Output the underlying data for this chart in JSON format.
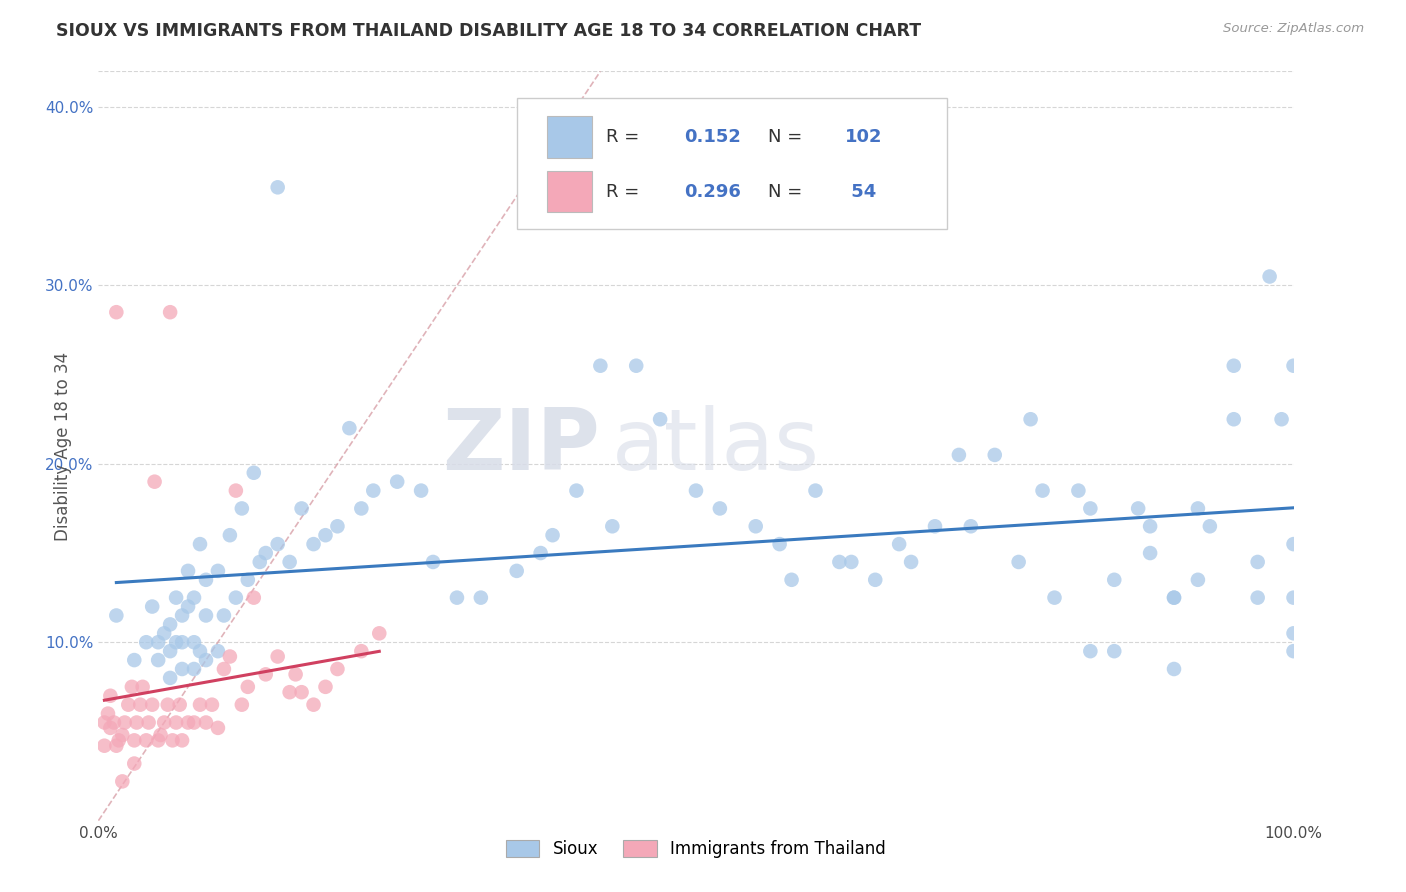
{
  "title": "SIOUX VS IMMIGRANTS FROM THAILAND DISABILITY AGE 18 TO 34 CORRELATION CHART",
  "source_text": "Source: ZipAtlas.com",
  "ylabel": "Disability Age 18 to 34",
  "xlim": [
    0.0,
    1.0
  ],
  "ylim": [
    0.0,
    0.42
  ],
  "xtick_labels": [
    "0.0%",
    "",
    "",
    "",
    "",
    "",
    "",
    "",
    "",
    "",
    "100.0%"
  ],
  "xtick_vals": [
    0.0,
    0.1,
    0.2,
    0.3,
    0.4,
    0.5,
    0.6,
    0.7,
    0.8,
    0.9,
    1.0
  ],
  "ytick_labels": [
    "10.0%",
    "20.0%",
    "30.0%",
    "40.0%"
  ],
  "ytick_vals": [
    0.1,
    0.2,
    0.3,
    0.4
  ],
  "legend1_label": "Sioux",
  "legend2_label": "Immigrants from Thailand",
  "R1": 0.152,
  "N1": 102,
  "R2": 0.296,
  "N2": 54,
  "sioux_color": "#a8c8e8",
  "thailand_color": "#f4a8b8",
  "trend1_color": "#3a7abf",
  "trend2_color": "#d04060",
  "diag_color": "#d8a0a8",
  "watermark_zip": "ZIP",
  "watermark_atlas": "atlas",
  "background_color": "#ffffff",
  "sioux_x": [
    0.015,
    0.03,
    0.04,
    0.045,
    0.05,
    0.05,
    0.055,
    0.06,
    0.06,
    0.06,
    0.065,
    0.065,
    0.07,
    0.07,
    0.07,
    0.075,
    0.075,
    0.08,
    0.08,
    0.08,
    0.085,
    0.085,
    0.09,
    0.09,
    0.09,
    0.1,
    0.1,
    0.105,
    0.11,
    0.115,
    0.12,
    0.125,
    0.13,
    0.135,
    0.14,
    0.15,
    0.15,
    0.16,
    0.17,
    0.18,
    0.19,
    0.2,
    0.21,
    0.22,
    0.23,
    0.25,
    0.27,
    0.28,
    0.3,
    0.32,
    0.35,
    0.37,
    0.38,
    0.4,
    0.42,
    0.43,
    0.45,
    0.47,
    0.5,
    0.52,
    0.55,
    0.57,
    0.58,
    0.6,
    0.62,
    0.63,
    0.65,
    0.67,
    0.68,
    0.7,
    0.72,
    0.73,
    0.75,
    0.77,
    0.78,
    0.8,
    0.82,
    0.83,
    0.85,
    0.85,
    0.87,
    0.88,
    0.9,
    0.9,
    0.92,
    0.93,
    0.95,
    0.95,
    0.97,
    0.97,
    0.98,
    0.99,
    1.0,
    1.0,
    1.0,
    1.0,
    1.0,
    0.79,
    0.83,
    0.88,
    0.9,
    0.92
  ],
  "sioux_y": [
    0.115,
    0.09,
    0.1,
    0.12,
    0.09,
    0.1,
    0.105,
    0.08,
    0.095,
    0.11,
    0.1,
    0.125,
    0.085,
    0.1,
    0.115,
    0.12,
    0.14,
    0.085,
    0.1,
    0.125,
    0.095,
    0.155,
    0.09,
    0.115,
    0.135,
    0.095,
    0.14,
    0.115,
    0.16,
    0.125,
    0.175,
    0.135,
    0.195,
    0.145,
    0.15,
    0.155,
    0.355,
    0.145,
    0.175,
    0.155,
    0.16,
    0.165,
    0.22,
    0.175,
    0.185,
    0.19,
    0.185,
    0.145,
    0.125,
    0.125,
    0.14,
    0.15,
    0.16,
    0.185,
    0.255,
    0.165,
    0.255,
    0.225,
    0.185,
    0.175,
    0.165,
    0.155,
    0.135,
    0.185,
    0.145,
    0.145,
    0.135,
    0.155,
    0.145,
    0.165,
    0.205,
    0.165,
    0.205,
    0.145,
    0.225,
    0.125,
    0.185,
    0.175,
    0.095,
    0.135,
    0.175,
    0.165,
    0.085,
    0.125,
    0.175,
    0.165,
    0.225,
    0.255,
    0.125,
    0.145,
    0.305,
    0.225,
    0.095,
    0.105,
    0.125,
    0.155,
    0.255,
    0.185,
    0.095,
    0.15,
    0.125,
    0.135
  ],
  "thailand_x": [
    0.005,
    0.008,
    0.01,
    0.013,
    0.015,
    0.017,
    0.02,
    0.022,
    0.025,
    0.028,
    0.03,
    0.032,
    0.035,
    0.037,
    0.04,
    0.042,
    0.045,
    0.047,
    0.05,
    0.052,
    0.055,
    0.058,
    0.06,
    0.062,
    0.065,
    0.068,
    0.07,
    0.075,
    0.08,
    0.085,
    0.09,
    0.095,
    0.1,
    0.105,
    0.11,
    0.115,
    0.12,
    0.125,
    0.13,
    0.14,
    0.15,
    0.16,
    0.165,
    0.17,
    0.18,
    0.19,
    0.2,
    0.22,
    0.235,
    0.005,
    0.01,
    0.015,
    0.02,
    0.03
  ],
  "thailand_y": [
    0.055,
    0.06,
    0.07,
    0.055,
    0.285,
    0.045,
    0.048,
    0.055,
    0.065,
    0.075,
    0.045,
    0.055,
    0.065,
    0.075,
    0.045,
    0.055,
    0.065,
    0.19,
    0.045,
    0.048,
    0.055,
    0.065,
    0.285,
    0.045,
    0.055,
    0.065,
    0.045,
    0.055,
    0.055,
    0.065,
    0.055,
    0.065,
    0.052,
    0.085,
    0.092,
    0.185,
    0.065,
    0.075,
    0.125,
    0.082,
    0.092,
    0.072,
    0.082,
    0.072,
    0.065,
    0.075,
    0.085,
    0.095,
    0.105,
    0.042,
    0.052,
    0.042,
    0.022,
    0.032
  ]
}
